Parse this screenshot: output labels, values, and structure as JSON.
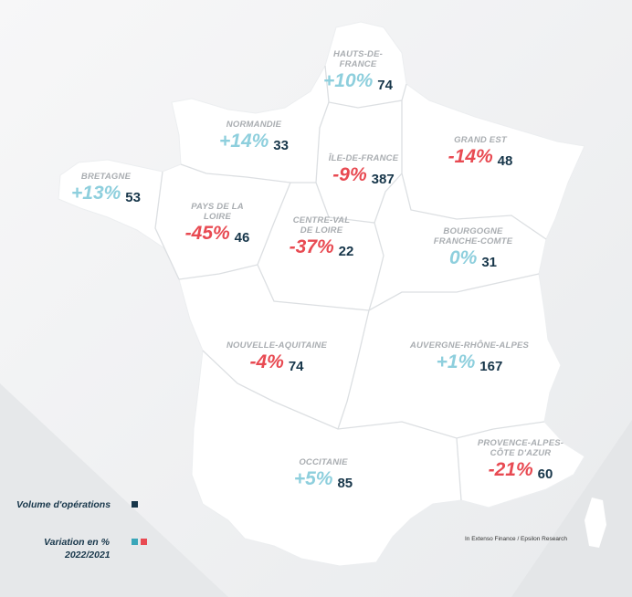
{
  "regions": [
    {
      "id": "hauts-de-france",
      "name": "HAUTS-DE-\nFRANCE",
      "variation": "+10%",
      "trend": "pos",
      "volume": "74"
    },
    {
      "id": "normandie",
      "name": "NORMANDIE",
      "variation": "+14%",
      "trend": "pos",
      "volume": "33"
    },
    {
      "id": "bretagne",
      "name": "BRETAGNE",
      "variation": "+13%",
      "trend": "pos",
      "volume": "53"
    },
    {
      "id": "ile-de-france",
      "name": "ÎLE-DE-FRANCE",
      "variation": "-9%",
      "trend": "neg",
      "volume": "387"
    },
    {
      "id": "grand-est",
      "name": "GRAND EST",
      "variation": "-14%",
      "trend": "neg",
      "volume": "48"
    },
    {
      "id": "pays-de-la-loire",
      "name": "PAYS DE LA\nLOIRE",
      "variation": "-45%",
      "trend": "neg",
      "volume": "46"
    },
    {
      "id": "centre-val-de-loire",
      "name": "CENTRE-VAL\nDE LOIRE",
      "variation": "-37%",
      "trend": "neg",
      "volume": "22"
    },
    {
      "id": "bourgogne-franche-comte",
      "name": "BOURGOGNE\nFRANCHE-COMTE",
      "variation": "0%",
      "trend": "pos",
      "volume": "31"
    },
    {
      "id": "nouvelle-aquitaine",
      "name": "NOUVELLE-AQUITAINE",
      "variation": "-4%",
      "trend": "neg",
      "volume": "74"
    },
    {
      "id": "auvergne-rhone-alpes",
      "name": "AUVERGNE-RHÔNE-ALPES",
      "variation": "+1%",
      "trend": "pos",
      "volume": "167"
    },
    {
      "id": "occitanie",
      "name": "OCCITANIE",
      "variation": "+5%",
      "trend": "pos",
      "volume": "85"
    },
    {
      "id": "provence-alpes-cote-d-azur",
      "name": "PROVENCE-ALPES-\nCÔTE D'AZUR",
      "variation": "-21%",
      "trend": "neg",
      "volume": "60"
    }
  ],
  "legend": {
    "volume_label": "Volume d'opérations",
    "variation_label": "Variation en %",
    "period": "2022/2021"
  },
  "source": "In Extenso Finance / Epsilon Research",
  "colors": {
    "positive": "#8ecfdd",
    "negative": "#e84a52",
    "volume": "#17364a",
    "legend_square_volume": "#17364a",
    "legend_square_positive": "#3aa6b9",
    "legend_square_negative": "#e84a52",
    "map_fill": "#ffffff",
    "borders": "#d9dcdf"
  }
}
